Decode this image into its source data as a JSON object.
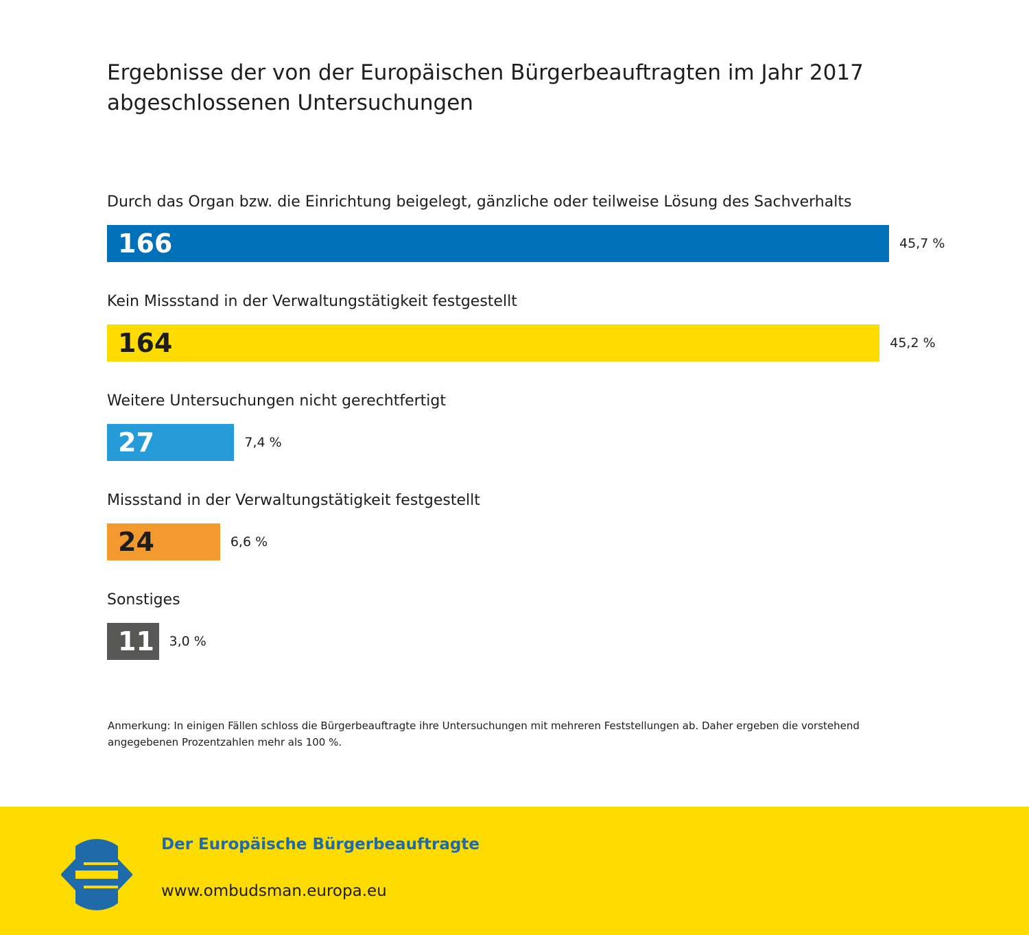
{
  "title": "Ergebnisse der von der Europäischen Bürgerbeauftragten im Jahr 2017 abgeschlossenen Untersuchungen",
  "chart_data": {
    "type": "bar",
    "orientation": "horizontal",
    "categories": [
      "Durch das Organ bzw. die Einrichtung beigelegt, gänzliche oder teilweise Lösung des Sachverhalts",
      "Kein Missstand in der Verwaltungstätigkeit festgestellt",
      "Weitere Untersuchungen nicht gerechtfertigt",
      "Missstand in der Verwaltungstätigkeit festgestellt",
      "Sonstiges"
    ],
    "values": [
      166,
      164,
      27,
      24,
      11
    ],
    "value_labels": [
      "166",
      "164",
      "27",
      "24",
      "11"
    ],
    "percent_labels": [
      "45,7 %",
      "45,2 %",
      "7,4 %",
      "6,6 %",
      "3,0 %"
    ],
    "colors": [
      "#0070b8",
      "#ffdc00",
      "#259cd8",
      "#f29a2e",
      "#575756"
    ],
    "value_text_colors": [
      "#ffffff",
      "#1d1d1b",
      "#ffffff",
      "#1d1d1b",
      "#ffffff"
    ],
    "xlim": [
      0,
      166
    ],
    "grid": false
  },
  "note": "Anmerkung: In einigen Fällen schloss die Bürgerbeauftragte ihre Untersuchungen mit mehreren Feststellungen ab. Daher ergeben die vorstehend angegebenen Prozentzahlen mehr als 100 %.",
  "footer": {
    "org_name": "Der Europäische Bürgerbeauftragte",
    "url": "www.ombudsman.europa.eu",
    "logo_icon": "ombudsman-logo-icon",
    "background": "#ffdc00"
  }
}
